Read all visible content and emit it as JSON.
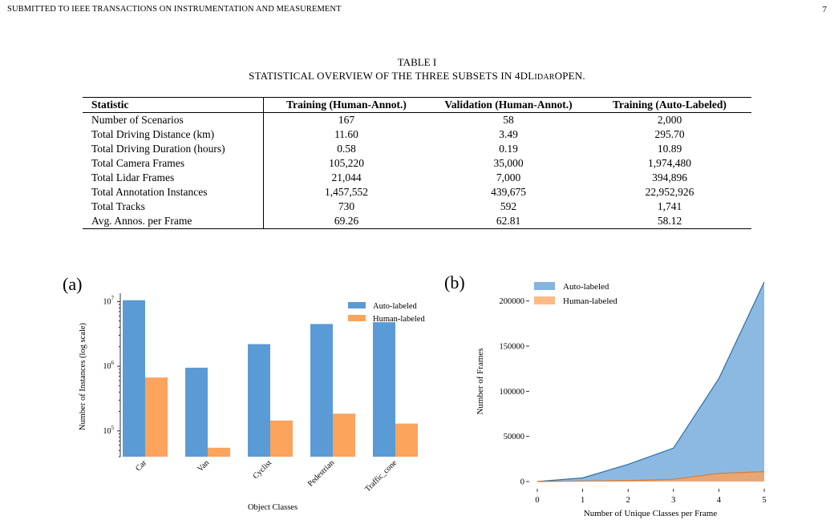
{
  "header": {
    "journal": "SUBMITTED TO IEEE TRANSACTIONS ON INSTRUMENTATION AND MEASUREMENT",
    "page_number": "7"
  },
  "table": {
    "caption": "TABLE I",
    "title_pre": "STATISTICAL OVERVIEW OF THE THREE SUBSETS IN 4DL",
    "title_sc": "IDAR",
    "title_post": "OPEN.",
    "columns": [
      "Statistic",
      "Training (Human-Annot.)",
      "Validation (Human-Annot.)",
      "Training (Auto-Labeled)"
    ],
    "rows": [
      [
        "Number of Scenarios",
        "167",
        "58",
        "2,000"
      ],
      [
        "Total Driving Distance (km)",
        "11.60",
        "3.49",
        "295.70"
      ],
      [
        "Total Driving Duration (hours)",
        "0.58",
        "0.19",
        "10.89"
      ],
      [
        "Total Camera Frames",
        "105,220",
        "35,000",
        "1,974,480"
      ],
      [
        "Total Lidar Frames",
        "21,044",
        "7,000",
        "394,896"
      ],
      [
        "Total Annotation Instances",
        "1,457,552",
        "439,675",
        "22,952,926"
      ],
      [
        "Total Tracks",
        "730",
        "592",
        "1,741"
      ],
      [
        "Avg. Annos. per Frame",
        "69.26",
        "62.81",
        "58.12"
      ]
    ]
  },
  "chart_data": [
    {
      "panel_label": "(a)",
      "type": "bar",
      "yscale": "log",
      "categories": [
        "Car",
        "Van",
        "Cyclist",
        "Pedestrian",
        "Traffic_cone"
      ],
      "series": [
        {
          "name": "Auto-labeled",
          "color": "#5b9bd5",
          "values": [
            10500000,
            950000,
            2200000,
            4500000,
            4800000
          ]
        },
        {
          "name": "Human-labeled",
          "color": "#fca35c",
          "values": [
            670000,
            55000,
            145000,
            185000,
            130000
          ]
        }
      ],
      "xlabel": "Object Classes",
      "ylabel": "Number of Instances (log scale)",
      "yticks": [
        "10^5",
        "10^6",
        "10^7"
      ],
      "ylim": [
        40000,
        12000000
      ],
      "legend": "top-right",
      "grid": false
    },
    {
      "panel_label": "(b)",
      "type": "area",
      "x": [
        0,
        1,
        2,
        3,
        4,
        5
      ],
      "series": [
        {
          "name": "Auto-labeled",
          "color": "#5b9bd5",
          "values": [
            0,
            4000,
            19000,
            37000,
            114000,
            221000
          ]
        },
        {
          "name": "Human-labeled",
          "color": "#fca35c",
          "values": [
            0,
            500,
            1000,
            2500,
            9000,
            11000
          ]
        }
      ],
      "xlabel": "Number of Unique Classes per Frame",
      "ylabel": "Number of Frames",
      "xticks": [
        "0",
        "1",
        "2",
        "3",
        "4",
        "5"
      ],
      "yticks": [
        "0",
        "50000",
        "100000",
        "150000",
        "200000"
      ],
      "xlim": [
        0,
        5
      ],
      "ylim": [
        0,
        221000
      ],
      "legend": "top-left",
      "grid": false
    }
  ]
}
